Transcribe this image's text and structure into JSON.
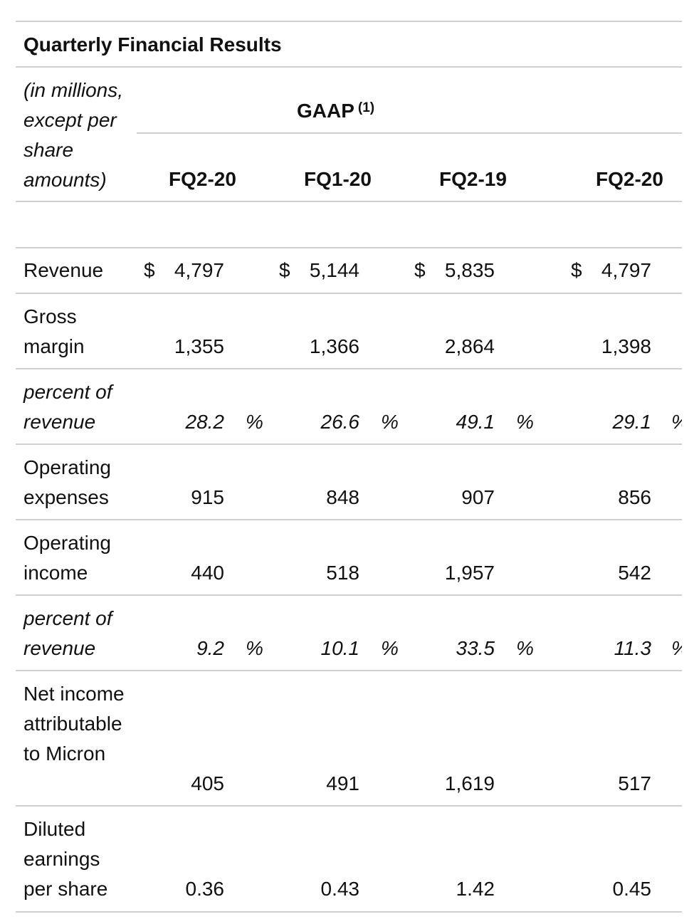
{
  "title": "Quarterly Financial Results",
  "units_note": "(in millions, except per share amounts)",
  "group_header": "GAAP",
  "group_header_footnote": "(1)",
  "columns": [
    "FQ2-20",
    "FQ1-20",
    "FQ2-19",
    "FQ2-20"
  ],
  "rows": [
    {
      "label": "Revenue",
      "italic": false,
      "currency": "$",
      "values": [
        "4,797",
        "5,144",
        "5,835",
        "4,797"
      ],
      "suffix": ""
    },
    {
      "label": "Gross margin",
      "italic": false,
      "currency": "",
      "values": [
        "1,355",
        "1,366",
        "2,864",
        "1,398"
      ],
      "suffix": ""
    },
    {
      "label": "percent of revenue",
      "italic": true,
      "currency": "",
      "values": [
        "28.2",
        "26.6",
        "49.1",
        "29.1"
      ],
      "suffix": "%"
    },
    {
      "label": "Operating expenses",
      "italic": false,
      "currency": "",
      "values": [
        "915",
        "848",
        "907",
        "856"
      ],
      "suffix": ""
    },
    {
      "label": "Operating income",
      "italic": false,
      "currency": "",
      "values": [
        "440",
        "518",
        "1,957",
        "542"
      ],
      "suffix": ""
    },
    {
      "label": "percent of revenue",
      "italic": true,
      "currency": "",
      "values": [
        "9.2",
        "10.1",
        "33.5",
        "11.3"
      ],
      "suffix": "%"
    },
    {
      "label": "Net income attributable to Micron",
      "italic": false,
      "currency": "",
      "values": [
        "405",
        "491",
        "1,619",
        "517"
      ],
      "suffix": ""
    },
    {
      "label": "Diluted earnings per share",
      "italic": false,
      "currency": "",
      "values": [
        "0.36",
        "0.43",
        "1.42",
        "0.45"
      ],
      "suffix": ""
    }
  ]
}
